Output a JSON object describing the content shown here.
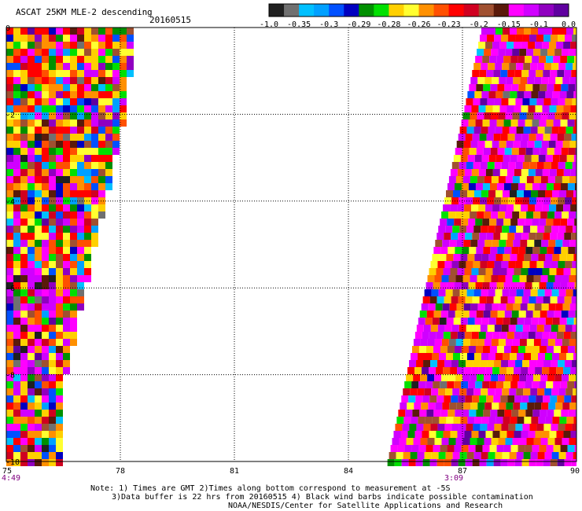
{
  "header": {
    "title": "ASCAT 25KM MLE-2 descending",
    "date": "20160515"
  },
  "colorbar": {
    "colors": [
      "#202020",
      "#707070",
      "#00c0ff",
      "#00a0ff",
      "#0050ff",
      "#0000c0",
      "#009000",
      "#00e000",
      "#ffd000",
      "#ffff30",
      "#ff9000",
      "#ff5000",
      "#ff0000",
      "#d00020",
      "#a05030",
      "#5a1a0a",
      "#ff00ff",
      "#d000ff",
      "#9000c0",
      "#6000a0"
    ],
    "labels": [
      "-1.0",
      "-0.35",
      "-0.3",
      "-0.29",
      "-0.28",
      "-0.26",
      "-0.23",
      "-0.2",
      "-0.15",
      "-0.1",
      "0.0"
    ]
  },
  "map": {
    "x_range": [
      75,
      90
    ],
    "y_range": [
      0,
      -10
    ],
    "x_ticks": [
      "75",
      "78",
      "81",
      "84",
      "87",
      "90"
    ],
    "y_ticks": [
      "0",
      "-2",
      "-4",
      "-6",
      "-8",
      "-10"
    ],
    "pass_times": [
      "4:49",
      "3:09"
    ],
    "time_color": "#800080"
  },
  "notes": {
    "line1": "Note: 1) Times are GMT 2)Times along bottom correspond to measurement at -5S",
    "line2": "3)Data buffer is 22 hrs from 20160515 4) Black wind barbs indicate possible contamination",
    "line3": "NOAA/NESDIS/Center for Satellite Applications and Research"
  }
}
